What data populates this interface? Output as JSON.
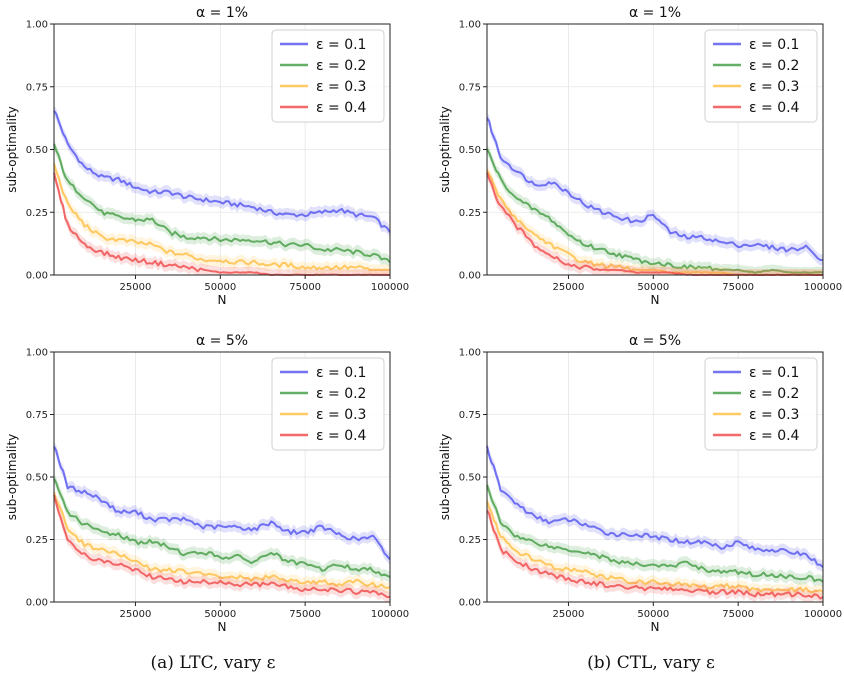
{
  "captions": [
    "(a) LTC, vary ε",
    "(b) CTL, vary ε"
  ],
  "colors": {
    "eps_0_1": "#5b5bf0",
    "eps_0_2": "#4aa04a",
    "eps_0_3": "#ffc04a",
    "eps_0_4": "#f05050"
  },
  "chart_data": [
    {
      "type": "line",
      "title": "α = 1%",
      "xlabel": "N",
      "ylabel": "sub-optimality",
      "xlim": [
        1000,
        100000
      ],
      "ylim": [
        0,
        1
      ],
      "xticks": [
        "25000",
        "50000",
        "75000",
        "100000"
      ],
      "yticks": [
        "0.00",
        "0.25",
        "0.50",
        "0.75",
        "1.00"
      ],
      "grid": true,
      "legend": "top-right",
      "x": [
        1000,
        5000,
        10000,
        15000,
        20000,
        25000,
        30000,
        35000,
        40000,
        45000,
        50000,
        55000,
        60000,
        65000,
        70000,
        75000,
        80000,
        85000,
        90000,
        95000,
        100000
      ],
      "series": [
        {
          "name": "ε = 0.1",
          "values": [
            0.66,
            0.52,
            0.43,
            0.39,
            0.38,
            0.35,
            0.33,
            0.33,
            0.31,
            0.3,
            0.29,
            0.28,
            0.27,
            0.25,
            0.24,
            0.24,
            0.25,
            0.26,
            0.24,
            0.23,
            0.17
          ]
        },
        {
          "name": "ε = 0.2",
          "values": [
            0.52,
            0.37,
            0.31,
            0.25,
            0.23,
            0.22,
            0.22,
            0.17,
            0.15,
            0.15,
            0.14,
            0.14,
            0.14,
            0.13,
            0.12,
            0.12,
            0.1,
            0.1,
            0.09,
            0.08,
            0.05
          ]
        },
        {
          "name": "ε = 0.3",
          "values": [
            0.44,
            0.28,
            0.2,
            0.15,
            0.14,
            0.13,
            0.12,
            0.09,
            0.08,
            0.06,
            0.06,
            0.05,
            0.05,
            0.04,
            0.04,
            0.03,
            0.03,
            0.03,
            0.03,
            0.02,
            0.02
          ]
        },
        {
          "name": "ε = 0.4",
          "values": [
            0.4,
            0.2,
            0.12,
            0.09,
            0.07,
            0.06,
            0.05,
            0.04,
            0.03,
            0.02,
            0.01,
            0.01,
            0.01,
            0.0,
            0.0,
            0.0,
            0.0,
            0.0,
            0.0,
            0.0,
            0.0
          ]
        }
      ]
    },
    {
      "type": "line",
      "title": "α = 1%",
      "xlabel": "N",
      "ylabel": "sub-optimality",
      "xlim": [
        1000,
        100000
      ],
      "ylim": [
        0,
        1
      ],
      "xticks": [
        "25000",
        "50000",
        "75000",
        "100000"
      ],
      "yticks": [
        "0.00",
        "0.25",
        "0.50",
        "0.75",
        "1.00"
      ],
      "grid": true,
      "legend": "top-right",
      "x": [
        1000,
        5000,
        10000,
        15000,
        20000,
        25000,
        30000,
        35000,
        40000,
        45000,
        50000,
        55000,
        60000,
        65000,
        70000,
        75000,
        80000,
        85000,
        90000,
        95000,
        100000
      ],
      "series": [
        {
          "name": "ε = 0.1",
          "values": [
            0.63,
            0.47,
            0.41,
            0.36,
            0.37,
            0.33,
            0.28,
            0.25,
            0.23,
            0.21,
            0.24,
            0.17,
            0.15,
            0.15,
            0.13,
            0.12,
            0.12,
            0.11,
            0.1,
            0.11,
            0.06
          ]
        },
        {
          "name": "ε = 0.2",
          "values": [
            0.5,
            0.38,
            0.3,
            0.26,
            0.22,
            0.16,
            0.12,
            0.1,
            0.08,
            0.06,
            0.05,
            0.04,
            0.03,
            0.03,
            0.02,
            0.02,
            0.01,
            0.02,
            0.01,
            0.01,
            0.01
          ]
        },
        {
          "name": "ε = 0.3",
          "values": [
            0.42,
            0.3,
            0.22,
            0.16,
            0.12,
            0.08,
            0.05,
            0.04,
            0.03,
            0.02,
            0.02,
            0.01,
            0.01,
            0.01,
            0.01,
            0.0,
            0.0,
            0.0,
            0.0,
            0.0,
            0.0
          ]
        },
        {
          "name": "ε = 0.4",
          "values": [
            0.4,
            0.27,
            0.19,
            0.12,
            0.08,
            0.04,
            0.03,
            0.02,
            0.02,
            0.01,
            0.01,
            0.01,
            0.0,
            0.0,
            0.0,
            0.0,
            0.0,
            0.0,
            0.0,
            0.0,
            0.0
          ]
        }
      ]
    },
    {
      "type": "line",
      "title": "α = 5%",
      "xlabel": "N",
      "ylabel": "sub-optimality",
      "xlim": [
        1000,
        100000
      ],
      "ylim": [
        0,
        1
      ],
      "xticks": [
        "25000",
        "50000",
        "75000",
        "100000"
      ],
      "yticks": [
        "0.00",
        "0.25",
        "0.50",
        "0.75",
        "1.00"
      ],
      "grid": true,
      "legend": "top-right",
      "x": [
        1000,
        5000,
        10000,
        15000,
        20000,
        25000,
        30000,
        35000,
        40000,
        45000,
        50000,
        55000,
        60000,
        65000,
        70000,
        75000,
        80000,
        85000,
        90000,
        95000,
        100000
      ],
      "series": [
        {
          "name": "ε = 0.1",
          "values": [
            0.63,
            0.46,
            0.44,
            0.41,
            0.36,
            0.36,
            0.33,
            0.33,
            0.33,
            0.3,
            0.3,
            0.3,
            0.29,
            0.32,
            0.28,
            0.28,
            0.3,
            0.27,
            0.25,
            0.26,
            0.17
          ]
        },
        {
          "name": "ε = 0.2",
          "values": [
            0.49,
            0.36,
            0.31,
            0.28,
            0.27,
            0.24,
            0.24,
            0.22,
            0.19,
            0.2,
            0.18,
            0.18,
            0.16,
            0.2,
            0.16,
            0.15,
            0.13,
            0.15,
            0.13,
            0.13,
            0.1
          ]
        },
        {
          "name": "ε = 0.3",
          "values": [
            0.44,
            0.29,
            0.23,
            0.21,
            0.19,
            0.16,
            0.13,
            0.13,
            0.12,
            0.11,
            0.1,
            0.1,
            0.09,
            0.1,
            0.09,
            0.08,
            0.08,
            0.07,
            0.08,
            0.07,
            0.06
          ]
        },
        {
          "name": "ε = 0.4",
          "values": [
            0.42,
            0.25,
            0.19,
            0.16,
            0.15,
            0.13,
            0.1,
            0.09,
            0.08,
            0.08,
            0.08,
            0.07,
            0.07,
            0.07,
            0.06,
            0.05,
            0.05,
            0.05,
            0.04,
            0.04,
            0.02
          ]
        }
      ]
    },
    {
      "type": "line",
      "title": "α = 5%",
      "xlabel": "N",
      "ylabel": "sub-optimality",
      "xlim": [
        1000,
        100000
      ],
      "ylim": [
        0,
        1
      ],
      "xticks": [
        "25000",
        "50000",
        "75000",
        "100000"
      ],
      "yticks": [
        "0.00",
        "0.25",
        "0.50",
        "0.75",
        "1.00"
      ],
      "grid": true,
      "legend": "top-right",
      "x": [
        1000,
        5000,
        10000,
        15000,
        20000,
        25000,
        30000,
        35000,
        40000,
        45000,
        50000,
        55000,
        60000,
        65000,
        70000,
        75000,
        80000,
        85000,
        90000,
        95000,
        100000
      ],
      "series": [
        {
          "name": "ε = 0.1",
          "values": [
            0.62,
            0.45,
            0.39,
            0.34,
            0.32,
            0.33,
            0.31,
            0.28,
            0.27,
            0.27,
            0.26,
            0.25,
            0.24,
            0.24,
            0.22,
            0.24,
            0.21,
            0.21,
            0.2,
            0.19,
            0.14
          ]
        },
        {
          "name": "ε = 0.2",
          "values": [
            0.46,
            0.32,
            0.26,
            0.24,
            0.22,
            0.21,
            0.2,
            0.18,
            0.16,
            0.15,
            0.15,
            0.14,
            0.16,
            0.13,
            0.12,
            0.12,
            0.11,
            0.11,
            0.1,
            0.1,
            0.08
          ]
        },
        {
          "name": "ε = 0.3",
          "values": [
            0.4,
            0.26,
            0.2,
            0.17,
            0.14,
            0.13,
            0.12,
            0.1,
            0.09,
            0.08,
            0.08,
            0.07,
            0.07,
            0.06,
            0.07,
            0.06,
            0.05,
            0.05,
            0.05,
            0.05,
            0.04
          ]
        },
        {
          "name": "ε = 0.4",
          "values": [
            0.37,
            0.21,
            0.16,
            0.13,
            0.11,
            0.09,
            0.08,
            0.07,
            0.06,
            0.06,
            0.05,
            0.05,
            0.05,
            0.04,
            0.04,
            0.04,
            0.03,
            0.03,
            0.03,
            0.03,
            0.02
          ]
        }
      ]
    }
  ]
}
